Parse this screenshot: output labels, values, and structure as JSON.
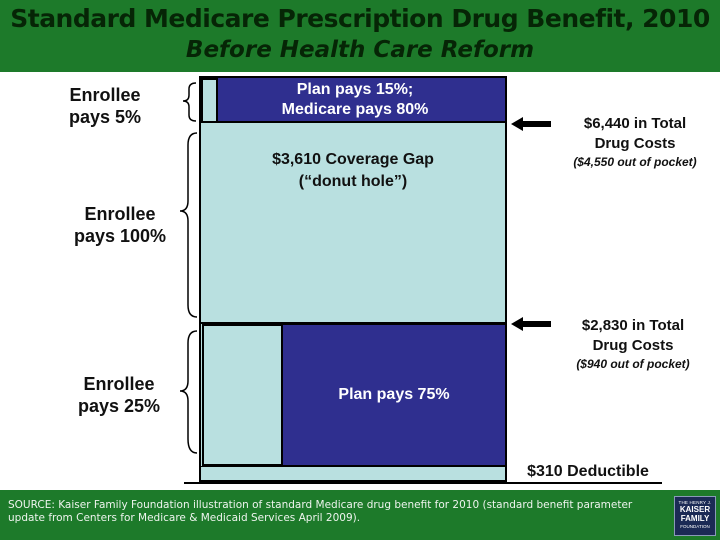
{
  "title": {
    "line1": "Standard Medicare Prescription Drug Benefit, 2010",
    "line2": "Before Health Care Reform"
  },
  "bar_labels": {
    "top": "Plan pays 15%;\nMedicare pays 80%",
    "gap": "$3,610 Coverage Gap\n(“donut hole”)",
    "initial": "Plan pays 75%"
  },
  "enrollee_labels": {
    "top": "Enrollee\npays 5%",
    "gap": "Enrollee\npays 100%",
    "initial": "Enrollee\npays 25%"
  },
  "annotations": {
    "catastrophic": {
      "main": "$6,440 in Total\nDrug Costs",
      "sub": "($4,550 out of pocket)"
    },
    "initial": {
      "main": "$2,830 in Total\nDrug Costs",
      "sub": "($940 out of pocket)"
    },
    "deductible": "$310 Deductible"
  },
  "source": "SOURCE:  Kaiser Family Foundation illustration of standard Medicare drug benefit for 2010 (standard benefit parameter\n update from Centers for Medicare & Medicaid Services April 2009).",
  "logo": {
    "line1": "THE HENRY J.",
    "line2": "KAISER",
    "line3": "FAMILY",
    "line4": "FOUNDATION"
  },
  "colors": {
    "header_green": "#1d7a2a",
    "plan_blue": "#2f2f8f",
    "enrollee_light": "#b9e0e0"
  }
}
